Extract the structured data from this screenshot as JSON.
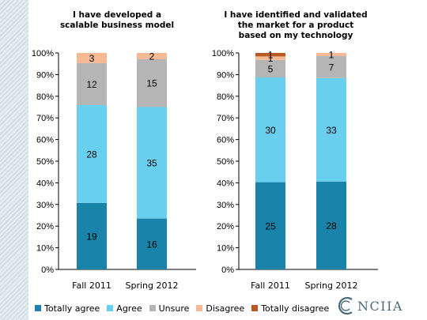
{
  "chart_data": [
    {
      "type": "bar",
      "stacked": true,
      "title": [
        "I have developed a",
        "scalable business model"
      ],
      "categories": [
        "Fall 2011",
        "Spring 2012"
      ],
      "ylim": [
        0,
        100
      ],
      "yticks": [
        "0%",
        "10%",
        "20%",
        "30%",
        "40%",
        "50%",
        "60%",
        "70%",
        "80%",
        "90%",
        "100%"
      ],
      "series": [
        {
          "name": "Totally agree",
          "values": [
            19,
            16
          ]
        },
        {
          "name": "Agree",
          "values": [
            28,
            35
          ]
        },
        {
          "name": "Unsure",
          "values": [
            12,
            15
          ]
        },
        {
          "name": "Disagree",
          "values": [
            3,
            2
          ]
        },
        {
          "name": "Totally disagree",
          "values": [
            0,
            0
          ]
        }
      ],
      "percent_bounds": [
        [
          30.7,
          75.9,
          95.3,
          100,
          100
        ],
        [
          23.5,
          75.0,
          97.1,
          100,
          100
        ]
      ]
    },
    {
      "type": "bar",
      "stacked": true,
      "title": [
        "I have identified and validated",
        "the market for a product",
        "based on my technology"
      ],
      "categories": [
        "Fall 2011",
        "Spring 2012"
      ],
      "ylim": [
        0,
        100
      ],
      "yticks": [
        "0%",
        "10%",
        "20%",
        "30%",
        "40%",
        "50%",
        "60%",
        "70%",
        "80%",
        "90%",
        "100%"
      ],
      "series": [
        {
          "name": "Totally agree",
          "values": [
            25,
            28
          ]
        },
        {
          "name": "Agree",
          "values": [
            30,
            33
          ]
        },
        {
          "name": "Unsure",
          "values": [
            5,
            7
          ]
        },
        {
          "name": "Disagree",
          "values": [
            1,
            1
          ]
        },
        {
          "name": "Totally disagree",
          "values": [
            1,
            null
          ]
        }
      ],
      "percent_bounds": [
        [
          40.3,
          88.7,
          96.8,
          98.4,
          100
        ],
        [
          40.6,
          88.4,
          98.6,
          100,
          100
        ]
      ]
    }
  ],
  "colors": {
    "Totally agree": "#1a83a9",
    "Agree": "#69cfef",
    "Unsure": "#b5b5b5",
    "Disagree": "#f7b894",
    "Totally disagree": "#b85a22"
  },
  "legend": [
    "Totally agree",
    "Agree",
    "Unsure",
    "Disagree",
    "Totally disagree"
  ],
  "logo": {
    "text": "NCIIA",
    "icon": "nciia-logo-icon"
  }
}
